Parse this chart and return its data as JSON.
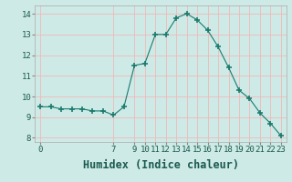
{
  "xlabel": "Humidex (Indice chaleur)",
  "x_values": [
    0,
    1,
    2,
    3,
    4,
    5,
    6,
    7,
    8,
    9,
    10,
    11,
    12,
    13,
    14,
    15,
    16,
    17,
    18,
    19,
    20,
    21,
    22,
    23
  ],
  "y_values": [
    9.5,
    9.5,
    9.4,
    9.4,
    9.4,
    9.3,
    9.3,
    9.1,
    9.5,
    11.5,
    11.6,
    13.0,
    13.0,
    13.8,
    14.0,
    13.7,
    13.2,
    12.4,
    11.4,
    10.3,
    9.9,
    9.2,
    8.7,
    8.1
  ],
  "line_color": "#1a7a6e",
  "marker": "+",
  "marker_size": 4,
  "bg_color": "#ceeae6",
  "grid_color": "#f0b8b8",
  "ylim": [
    7.8,
    14.4
  ],
  "yticks": [
    8,
    9,
    10,
    11,
    12,
    13,
    14
  ],
  "xticks": [
    0,
    7,
    9,
    10,
    11,
    12,
    13,
    14,
    15,
    16,
    17,
    18,
    19,
    20,
    21,
    22,
    23
  ],
  "tick_fontsize": 6.5,
  "xlabel_fontsize": 8.5
}
